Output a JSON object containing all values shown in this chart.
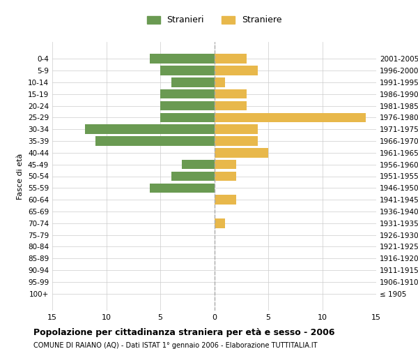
{
  "age_groups": [
    "100+",
    "95-99",
    "90-94",
    "85-89",
    "80-84",
    "75-79",
    "70-74",
    "65-69",
    "60-64",
    "55-59",
    "50-54",
    "45-49",
    "40-44",
    "35-39",
    "30-34",
    "25-29",
    "20-24",
    "15-19",
    "10-14",
    "5-9",
    "0-4"
  ],
  "birth_years": [
    "≤ 1905",
    "1906-1910",
    "1911-1915",
    "1916-1920",
    "1921-1925",
    "1926-1930",
    "1931-1935",
    "1936-1940",
    "1941-1945",
    "1946-1950",
    "1951-1955",
    "1956-1960",
    "1961-1965",
    "1966-1970",
    "1971-1975",
    "1976-1980",
    "1981-1985",
    "1986-1990",
    "1991-1995",
    "1996-2000",
    "2001-2005"
  ],
  "males": [
    0,
    0,
    0,
    0,
    0,
    0,
    0,
    0,
    0,
    6,
    4,
    3,
    0,
    11,
    12,
    5,
    5,
    5,
    4,
    5,
    6
  ],
  "females": [
    0,
    0,
    0,
    0,
    0,
    0,
    1,
    0,
    2,
    0,
    2,
    2,
    5,
    4,
    4,
    14,
    3,
    3,
    1,
    4,
    3
  ],
  "male_color": "#6a9a52",
  "female_color": "#e8b84b",
  "background_color": "#ffffff",
  "grid_color": "#cccccc",
  "dashed_line_color": "#aaaaaa",
  "title": "Popolazione per cittadinanza straniera per età e sesso - 2006",
  "subtitle": "COMUNE DI RAIANO (AQ) - Dati ISTAT 1° gennaio 2006 - Elaborazione TUTTITALIA.IT",
  "ylabel_left": "Fasce di età",
  "legend_male": "Stranieri",
  "legend_female": "Straniere",
  "xlim": 15,
  "bar_height": 0.8
}
